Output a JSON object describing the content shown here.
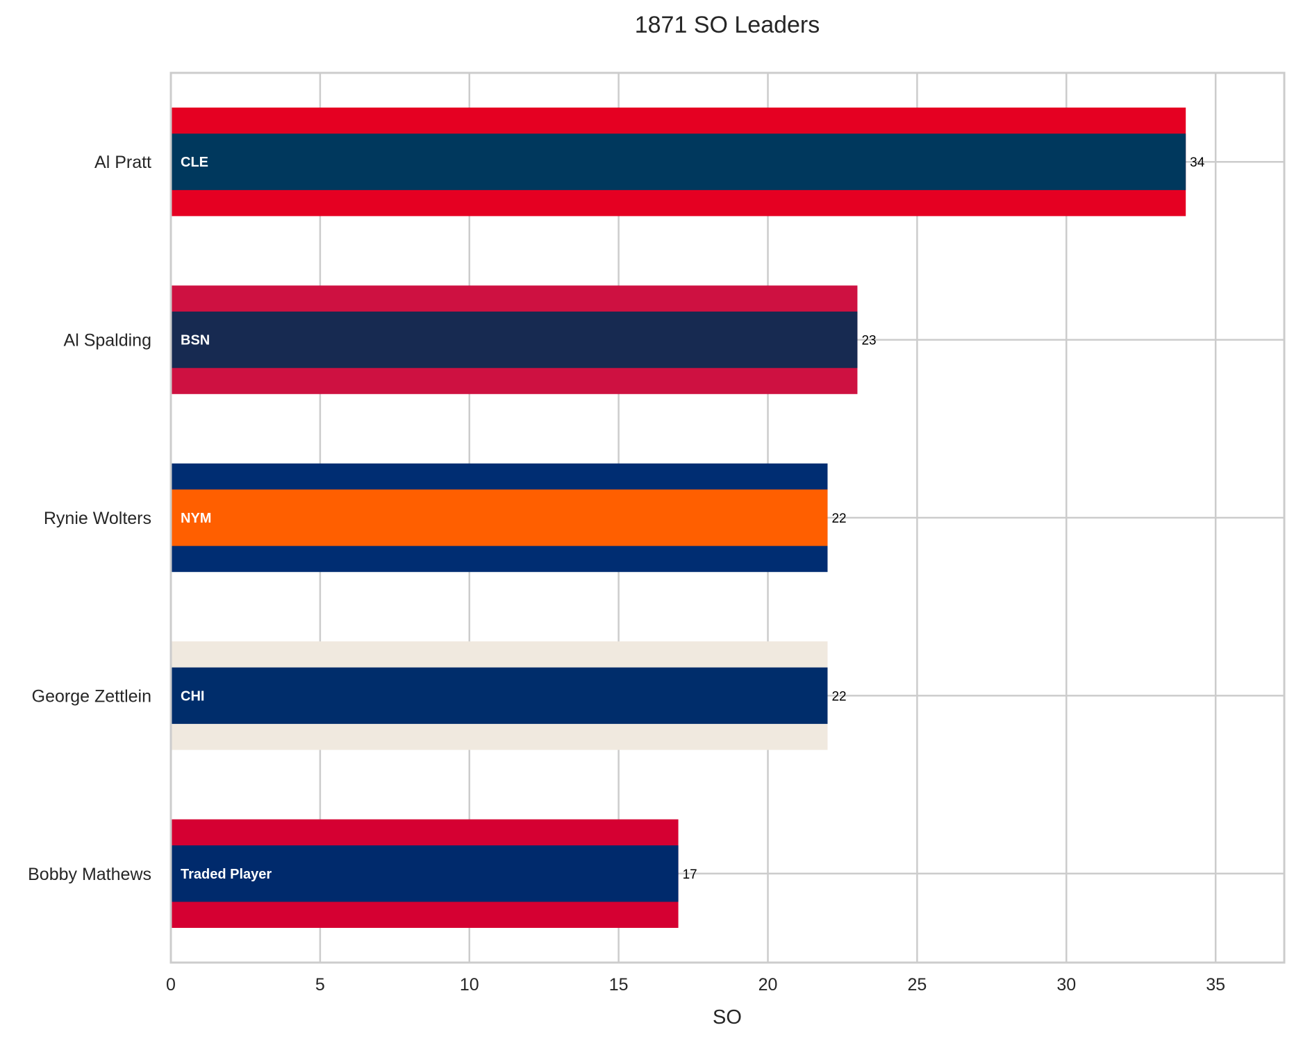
{
  "chart_data": {
    "type": "bar",
    "orientation": "horizontal",
    "title": "1871 SO Leaders",
    "xlabel": "SO",
    "ylabel": "",
    "xlim": [
      0,
      37.3
    ],
    "xticks": [
      0,
      5,
      10,
      15,
      20,
      25,
      30,
      35
    ],
    "grid": true,
    "categories": [
      "Al Pratt",
      "Al Spalding",
      "Rynie Wolters",
      "George Zettlein",
      "Bobby Mathews"
    ],
    "values": [
      34,
      23,
      22,
      22,
      17
    ],
    "bar_labels": [
      "CLE",
      "BSN",
      "NYM",
      "CHI",
      "Traded Player"
    ],
    "value_labels": [
      "34",
      "23",
      "22",
      "22",
      "17"
    ],
    "colors": [
      {
        "outer": "#e50022",
        "inner": "#00385d"
      },
      {
        "outer": "#ce1141",
        "inner": "#172a51"
      },
      {
        "outer": "#002d72",
        "inner": "#ff5f00"
      },
      {
        "outer": "#f0e9df",
        "inner": "#002d6b"
      },
      {
        "outer": "#d50032",
        "inner": "#002a6c"
      }
    ]
  }
}
